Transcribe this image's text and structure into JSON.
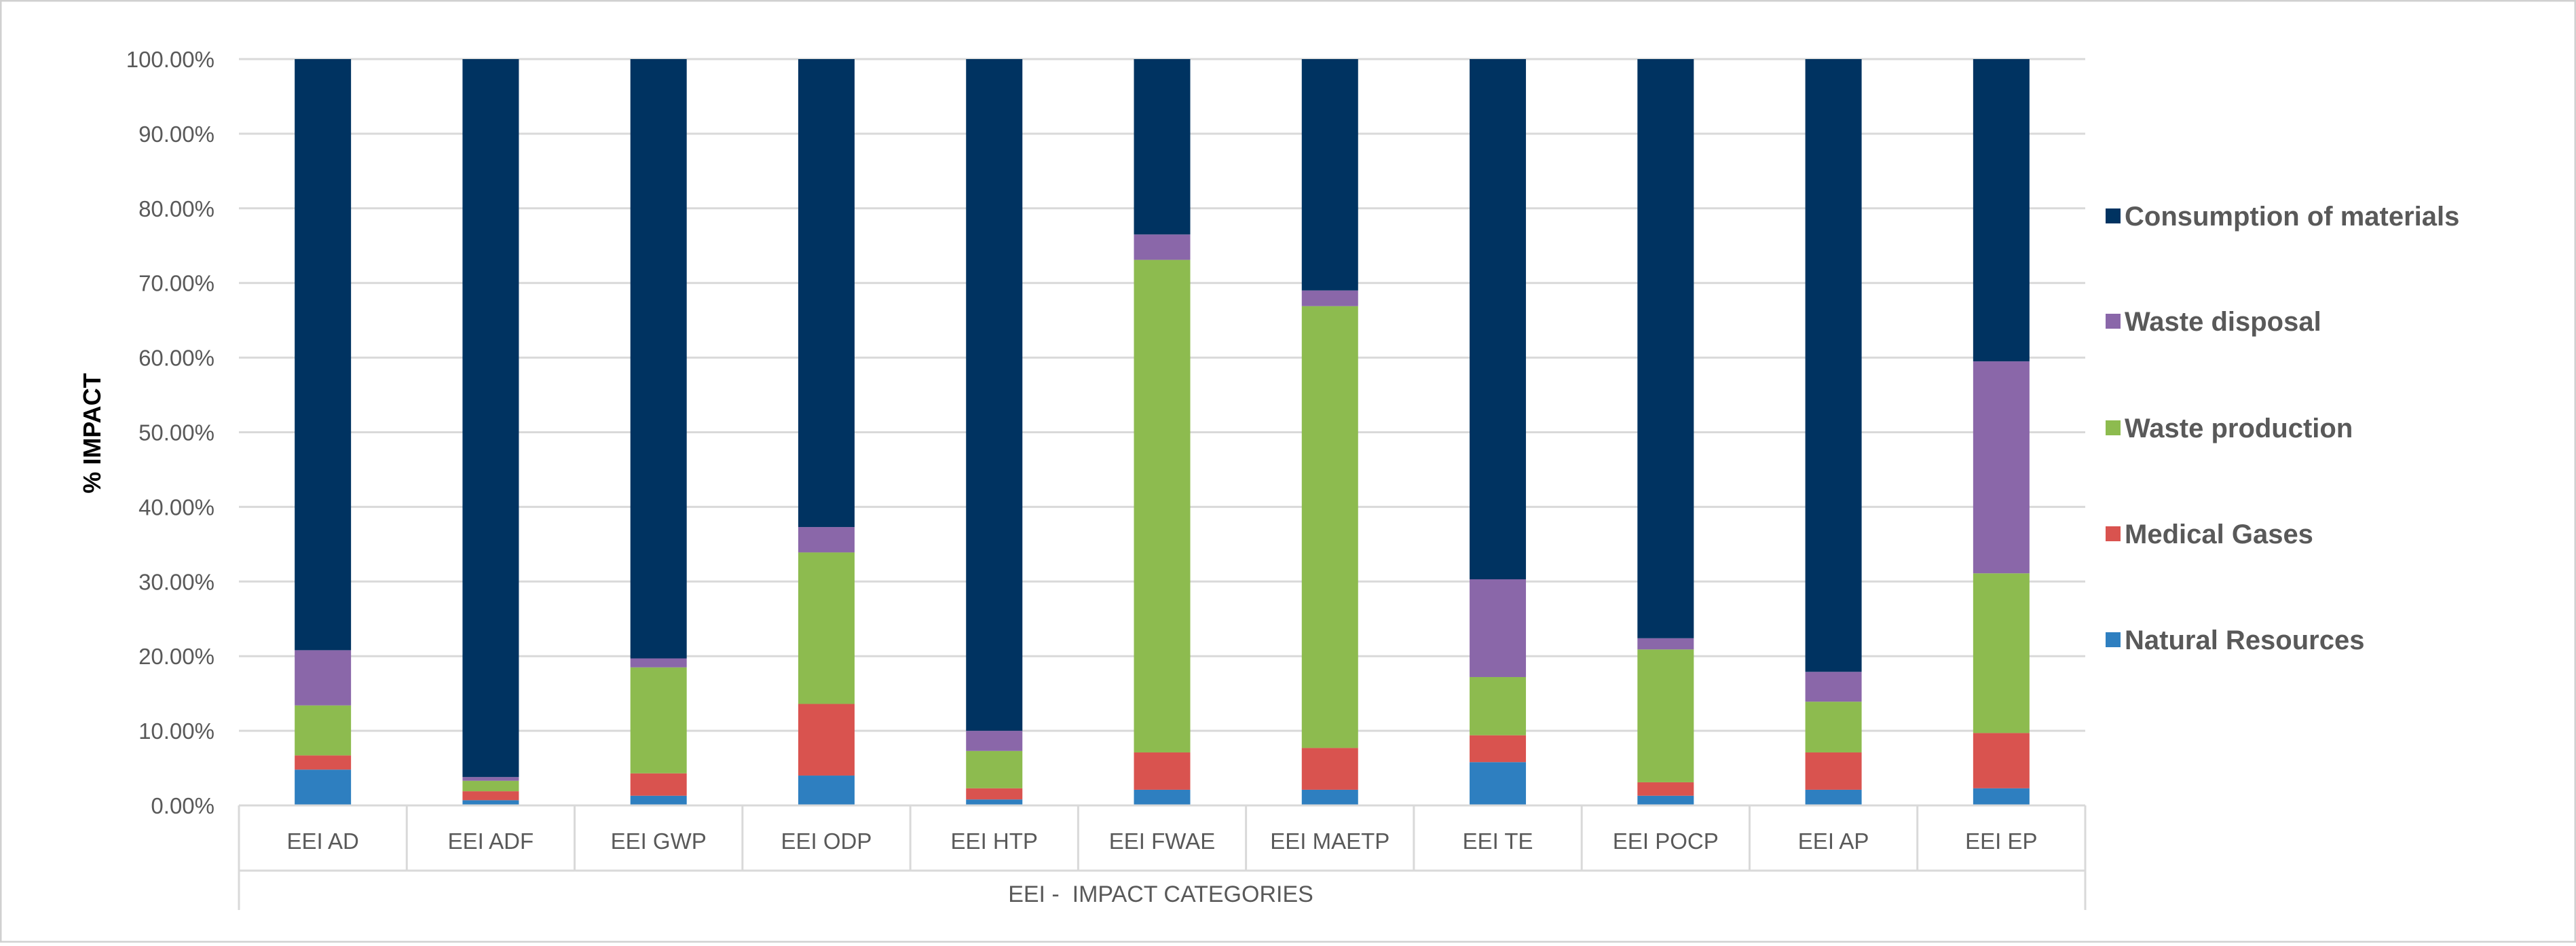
{
  "chart_data": {
    "type": "bar",
    "stacked": true,
    "title": "",
    "xlabel": "EEI -  IMPACT CATEGORIES",
    "ylabel": "% IMPACT",
    "ylim": [
      0,
      100
    ],
    "yticks": [
      0,
      10,
      20,
      30,
      40,
      50,
      60,
      70,
      80,
      90,
      100
    ],
    "ytick_labels": [
      "0.00%",
      "10.00%",
      "20.00%",
      "30.00%",
      "40.00%",
      "50.00%",
      "60.00%",
      "70.00%",
      "80.00%",
      "90.00%",
      "100.00%"
    ],
    "grid": true,
    "legend_position": "right",
    "categories": [
      "EEI AD",
      "EEI ADF",
      "EEI GWP",
      "EEI ODP",
      "EEI HTP",
      "EEI FWAE",
      "EEI MAETP",
      "EEI TE",
      "EEI POCP",
      "EEI AP",
      "EEI EP"
    ],
    "series": [
      {
        "name": "Natural Resources",
        "color": "#2E7FC0",
        "values": [
          4.8,
          0.7,
          1.3,
          4.0,
          0.8,
          2.1,
          2.1,
          5.8,
          1.3,
          2.1,
          2.3
        ]
      },
      {
        "name": "Medical Gases",
        "color": "#D9534F",
        "values": [
          1.9,
          1.2,
          3.0,
          9.6,
          1.5,
          5.0,
          5.6,
          3.6,
          1.8,
          5.0,
          7.4
        ]
      },
      {
        "name": "Waste production",
        "color": "#8DBB4F",
        "values": [
          6.7,
          1.4,
          14.2,
          20.3,
          5.0,
          66.0,
          59.2,
          7.8,
          17.8,
          6.8,
          21.4
        ]
      },
      {
        "name": "Waste disposal",
        "color": "#8A67A9",
        "values": [
          7.4,
          0.5,
          1.2,
          3.4,
          2.7,
          3.4,
          2.1,
          13.1,
          1.5,
          4.0,
          28.4
        ]
      },
      {
        "name": "Consumption of materials",
        "color": "#003361",
        "values": [
          79.2,
          96.2,
          80.3,
          62.7,
          90.0,
          23.5,
          31.0,
          69.7,
          77.6,
          82.1,
          40.5
        ]
      }
    ],
    "legend_order": [
      "Consumption of materials",
      "Waste disposal",
      "Waste production",
      "Medical Gases",
      "Natural Resources"
    ]
  }
}
